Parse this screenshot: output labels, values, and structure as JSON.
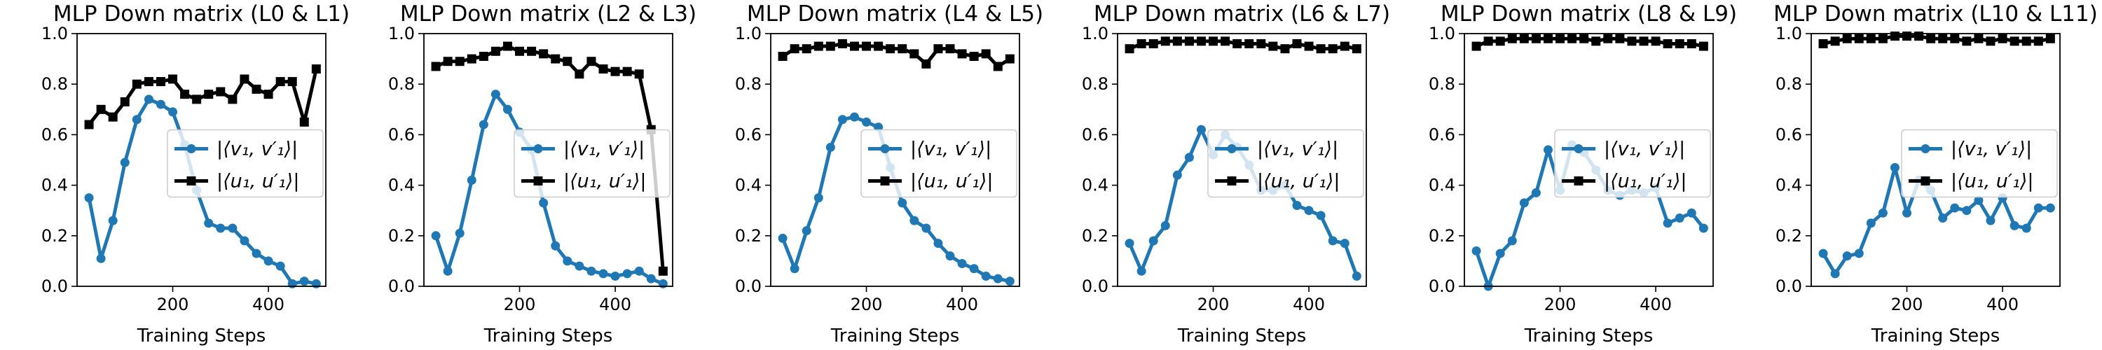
{
  "chart_data": [
    {
      "type": "line",
      "title": "MLP Down matrix (L0 & L1)",
      "xlabel": "Training Steps",
      "ylabel": "",
      "xlim": [
        0,
        520
      ],
      "ylim": [
        0,
        1.0
      ],
      "xticks": [
        200,
        400
      ],
      "yticks": [
        0.0,
        0.2,
        0.4,
        0.6,
        0.8,
        1.0
      ],
      "legend_position": "center-right",
      "x": [
        25,
        50,
        75,
        100,
        125,
        150,
        175,
        200,
        225,
        250,
        275,
        300,
        325,
        350,
        375,
        400,
        425,
        450,
        475,
        500
      ],
      "series": [
        {
          "name": "|⟨v₁, v′₁⟩|",
          "color": "#1f77b4",
          "marker": "circle",
          "values": [
            0.35,
            0.11,
            0.26,
            0.49,
            0.66,
            0.74,
            0.72,
            0.69,
            0.56,
            0.38,
            0.25,
            0.23,
            0.23,
            0.18,
            0.13,
            0.1,
            0.08,
            0.01,
            0.02,
            0.01
          ]
        },
        {
          "name": "|⟨u₁, u′₁⟩|",
          "color": "#000000",
          "marker": "square",
          "values": [
            0.64,
            0.7,
            0.67,
            0.73,
            0.8,
            0.81,
            0.81,
            0.82,
            0.76,
            0.74,
            0.76,
            0.77,
            0.74,
            0.82,
            0.78,
            0.76,
            0.81,
            0.81,
            0.65,
            0.86
          ]
        }
      ]
    },
    {
      "type": "line",
      "title": "MLP Down matrix (L2 & L3)",
      "xlabel": "Training Steps",
      "ylabel": "",
      "xlim": [
        0,
        520
      ],
      "ylim": [
        0,
        1.0
      ],
      "xticks": [
        200,
        400
      ],
      "yticks": [
        0.0,
        0.2,
        0.4,
        0.6,
        0.8,
        1.0
      ],
      "legend_position": "center-right",
      "x": [
        25,
        50,
        75,
        100,
        125,
        150,
        175,
        200,
        225,
        250,
        275,
        300,
        325,
        350,
        375,
        400,
        425,
        450,
        475,
        500
      ],
      "series": [
        {
          "name": "|⟨v₁, v′₁⟩|",
          "color": "#1f77b4",
          "marker": "circle",
          "values": [
            0.2,
            0.06,
            0.21,
            0.42,
            0.64,
            0.76,
            0.7,
            0.61,
            0.54,
            0.33,
            0.16,
            0.1,
            0.08,
            0.06,
            0.05,
            0.04,
            0.05,
            0.06,
            0.03,
            0.01
          ]
        },
        {
          "name": "|⟨u₁, u′₁⟩|",
          "color": "#000000",
          "marker": "square",
          "values": [
            0.87,
            0.89,
            0.89,
            0.9,
            0.91,
            0.93,
            0.95,
            0.93,
            0.93,
            0.92,
            0.9,
            0.89,
            0.84,
            0.89,
            0.86,
            0.85,
            0.85,
            0.84,
            0.62,
            0.06
          ]
        }
      ]
    },
    {
      "type": "line",
      "title": "MLP Down matrix (L4 & L5)",
      "xlabel": "Training Steps",
      "ylabel": "",
      "xlim": [
        0,
        520
      ],
      "ylim": [
        0,
        1.0
      ],
      "xticks": [
        200,
        400
      ],
      "yticks": [
        0.0,
        0.2,
        0.4,
        0.6,
        0.8,
        1.0
      ],
      "legend_position": "center-right",
      "x": [
        25,
        50,
        75,
        100,
        125,
        150,
        175,
        200,
        225,
        250,
        275,
        300,
        325,
        350,
        375,
        400,
        425,
        450,
        475,
        500
      ],
      "series": [
        {
          "name": "|⟨v₁, v′₁⟩|",
          "color": "#1f77b4",
          "marker": "circle",
          "values": [
            0.19,
            0.07,
            0.22,
            0.35,
            0.55,
            0.66,
            0.67,
            0.65,
            0.63,
            0.47,
            0.33,
            0.26,
            0.23,
            0.17,
            0.12,
            0.09,
            0.07,
            0.04,
            0.03,
            0.02
          ]
        },
        {
          "name": "|⟨u₁, u′₁⟩|",
          "color": "#000000",
          "marker": "square",
          "values": [
            0.91,
            0.94,
            0.94,
            0.95,
            0.95,
            0.96,
            0.95,
            0.95,
            0.95,
            0.94,
            0.94,
            0.92,
            0.88,
            0.94,
            0.94,
            0.92,
            0.91,
            0.92,
            0.87,
            0.9
          ]
        }
      ]
    },
    {
      "type": "line",
      "title": "MLP Down matrix (L6 & L7)",
      "xlabel": "Training Steps",
      "ylabel": "",
      "xlim": [
        0,
        520
      ],
      "ylim": [
        0,
        1.0
      ],
      "xticks": [
        200,
        400
      ],
      "yticks": [
        0.0,
        0.2,
        0.4,
        0.6,
        0.8,
        1.0
      ],
      "legend_position": "center-right",
      "x": [
        25,
        50,
        75,
        100,
        125,
        150,
        175,
        200,
        225,
        250,
        275,
        300,
        325,
        350,
        375,
        400,
        425,
        450,
        475,
        500
      ],
      "series": [
        {
          "name": "|⟨v₁, v′₁⟩|",
          "color": "#1f77b4",
          "marker": "circle",
          "values": [
            0.17,
            0.06,
            0.18,
            0.24,
            0.44,
            0.51,
            0.62,
            0.52,
            0.6,
            0.55,
            0.48,
            0.38,
            0.38,
            0.4,
            0.32,
            0.3,
            0.28,
            0.18,
            0.17,
            0.04
          ]
        },
        {
          "name": "|⟨u₁, u′₁⟩|",
          "color": "#000000",
          "marker": "square",
          "values": [
            0.94,
            0.96,
            0.96,
            0.97,
            0.97,
            0.97,
            0.97,
            0.97,
            0.97,
            0.96,
            0.96,
            0.96,
            0.95,
            0.94,
            0.96,
            0.95,
            0.94,
            0.94,
            0.95,
            0.94
          ]
        }
      ]
    },
    {
      "type": "line",
      "title": "MLP Down matrix (L8 & L9)",
      "xlabel": "Training Steps",
      "ylabel": "",
      "xlim": [
        0,
        520
      ],
      "ylim": [
        0,
        1.0
      ],
      "xticks": [
        200,
        400
      ],
      "yticks": [
        0.0,
        0.2,
        0.4,
        0.6,
        0.8,
        1.0
      ],
      "legend_position": "center-right",
      "x": [
        25,
        50,
        75,
        100,
        125,
        150,
        175,
        200,
        225,
        250,
        275,
        300,
        325,
        350,
        375,
        400,
        425,
        450,
        475,
        500
      ],
      "series": [
        {
          "name": "|⟨v₁, v′₁⟩|",
          "color": "#1f77b4",
          "marker": "circle",
          "values": [
            0.14,
            0.0,
            0.13,
            0.18,
            0.33,
            0.37,
            0.54,
            0.38,
            0.56,
            0.53,
            0.46,
            0.38,
            0.36,
            0.38,
            0.37,
            0.39,
            0.25,
            0.27,
            0.29,
            0.23
          ]
        },
        {
          "name": "|⟨u₁, u′₁⟩|",
          "color": "#000000",
          "marker": "square",
          "values": [
            0.95,
            0.97,
            0.97,
            0.98,
            0.98,
            0.98,
            0.98,
            0.98,
            0.98,
            0.98,
            0.97,
            0.98,
            0.98,
            0.97,
            0.97,
            0.97,
            0.96,
            0.96,
            0.96,
            0.95
          ]
        }
      ]
    },
    {
      "type": "line",
      "title": "MLP Down matrix (L10 & L11)",
      "xlabel": "Training Steps",
      "ylabel": "",
      "xlim": [
        0,
        520
      ],
      "ylim": [
        0,
        1.0
      ],
      "xticks": [
        200,
        400
      ],
      "yticks": [
        0.0,
        0.2,
        0.4,
        0.6,
        0.8,
        1.0
      ],
      "legend_position": "center-right",
      "x": [
        25,
        50,
        75,
        100,
        125,
        150,
        175,
        200,
        225,
        250,
        275,
        300,
        325,
        350,
        375,
        400,
        425,
        450,
        475,
        500
      ],
      "series": [
        {
          "name": "|⟨v₁, v′₁⟩|",
          "color": "#1f77b4",
          "marker": "circle",
          "values": [
            0.13,
            0.05,
            0.12,
            0.13,
            0.25,
            0.29,
            0.47,
            0.29,
            0.42,
            0.38,
            0.27,
            0.31,
            0.3,
            0.34,
            0.26,
            0.35,
            0.24,
            0.23,
            0.31,
            0.31
          ]
        },
        {
          "name": "|⟨u₁, u′₁⟩|",
          "color": "#000000",
          "marker": "square",
          "values": [
            0.96,
            0.97,
            0.98,
            0.98,
            0.98,
            0.98,
            0.99,
            0.99,
            0.99,
            0.98,
            0.98,
            0.98,
            0.97,
            0.98,
            0.97,
            0.98,
            0.97,
            0.97,
            0.97,
            0.98
          ]
        }
      ]
    }
  ]
}
